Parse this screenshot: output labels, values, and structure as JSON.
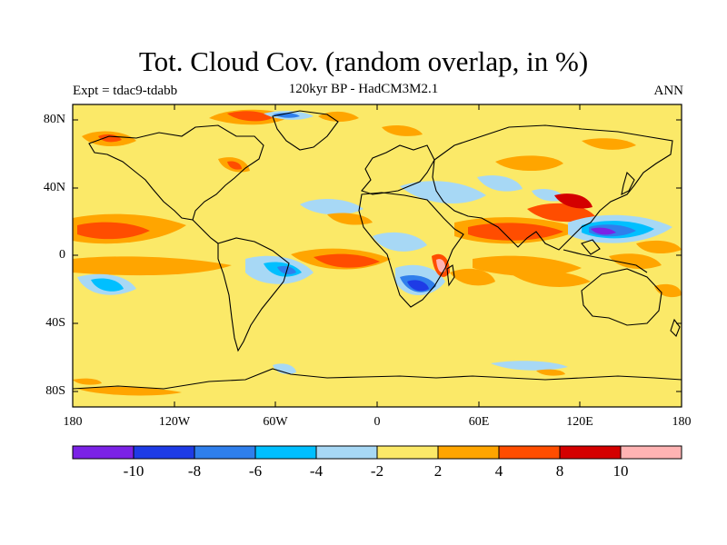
{
  "header": {
    "title": "Tot. Cloud Cov. (random overlap, in %)",
    "subtitle": "120kyr BP - HadCM3M2.1",
    "expt": "Expt = tdac9-tdabb",
    "season": "ANN"
  },
  "axes": {
    "y_ticks": [
      "80N",
      "40N",
      "0",
      "40S",
      "80S"
    ],
    "x_ticks": [
      "180",
      "120W",
      "60W",
      "0",
      "60E",
      "120E",
      "180"
    ]
  },
  "colorbar": {
    "colors": [
      "#7b22e6",
      "#1e3be6",
      "#2f7fec",
      "#00bfff",
      "#a7d8f5",
      "#fbe968",
      "#ffa500",
      "#ff4d00",
      "#d40000",
      "#ffb3b3"
    ],
    "labels": [
      "-10",
      "-8",
      "-6",
      "-4",
      "-2",
      "2",
      "4",
      "8",
      "10"
    ]
  },
  "colors": {
    "background": "#fbe968",
    "coast": "#000000"
  }
}
